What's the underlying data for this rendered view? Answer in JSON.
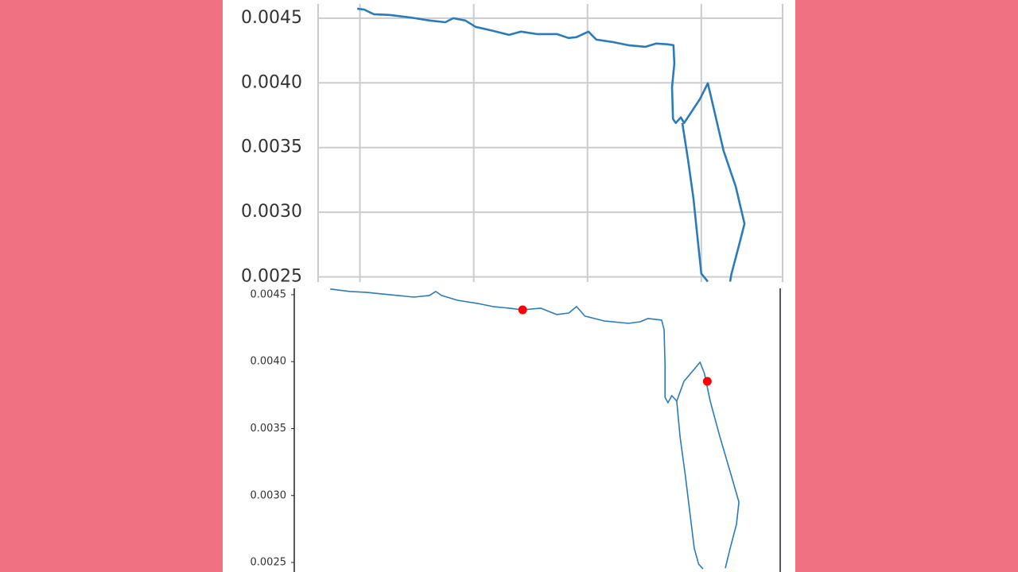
{
  "chart_data": [
    {
      "type": "line",
      "grid": true,
      "spines": "light",
      "ylim": [
        0.00246,
        0.00461
      ],
      "yticks": [
        {
          "value": 0.0025,
          "label": "0.0025"
        },
        {
          "value": 0.003,
          "label": "0.0030"
        },
        {
          "value": 0.0035,
          "label": "0.0035"
        },
        {
          "value": 0.004,
          "label": "0.0040"
        },
        {
          "value": 0.0045,
          "label": "0.0045"
        }
      ],
      "xlim": [
        0,
        100
      ],
      "xticks": [
        9,
        33.5,
        58,
        82.5
      ],
      "series": [
        {
          "color": "#2b7bba",
          "x": [
            8.4,
            9.9,
            12.0,
            15.4,
            19.7,
            24.0,
            27.4,
            29.1,
            31.7,
            33.9,
            37.7,
            41.1,
            43.7,
            47.1,
            51.4,
            53.9,
            55.6,
            58.2,
            59.9,
            63.4,
            66.8,
            70.5,
            72.8,
            75.3,
            76.5,
            76.7,
            76.2,
            76.4,
            77.0,
            78.1,
            78.8,
            82.2,
            83.9,
            85.3,
            87.3,
            89.9,
            91.8,
            90.8,
            89.0,
            88.7,
            null,
            78.4,
            79.6,
            80.8,
            81.7,
            82.5,
            83.9
          ],
          "values": [
            0.004574,
            0.004567,
            0.004531,
            0.004525,
            0.004506,
            0.004482,
            0.004469,
            0.0045,
            0.004482,
            0.004433,
            0.004402,
            0.004371,
            0.004396,
            0.004377,
            0.004377,
            0.004347,
            0.004353,
            0.004396,
            0.004334,
            0.004316,
            0.004291,
            0.004279,
            0.004304,
            0.004298,
            0.004291,
            0.00415,
            0.003966,
            0.003721,
            0.00369,
            0.003733,
            0.00369,
            0.003874,
            0.003997,
            0.003782,
            0.003475,
            0.0032,
            0.002911,
            0.00277,
            0.002525,
            0.002463,
            null,
            0.00369,
            0.003414,
            0.003107,
            0.0028,
            0.002525,
            0.002463
          ]
        }
      ]
    },
    {
      "type": "line",
      "grid": false,
      "spines": "dark",
      "ylim": [
        0.002429,
        0.004547
      ],
      "yticks": [
        {
          "value": 0.0025,
          "label": "0.0025"
        },
        {
          "value": 0.003,
          "label": "0.0030"
        },
        {
          "value": 0.0035,
          "label": "0.0035"
        },
        {
          "value": 0.004,
          "label": "0.0040"
        },
        {
          "value": 0.0045,
          "label": "0.0045"
        }
      ],
      "xlim": [
        0,
        100
      ],
      "series": [
        {
          "color": "#2b7bba",
          "x": [
            7.4,
            11.5,
            14.7,
            19.6,
            24.6,
            27.8,
            29.1,
            30.3,
            33.6,
            37.7,
            40.9,
            44.2,
            47.0,
            50.7,
            54.0,
            56.5,
            58.1,
            59.8,
            63.8,
            68.8,
            71.2,
            72.8,
            75.6,
            76.1,
            76.3,
            76.3,
            76.9,
            77.7,
            78.7,
            80.2,
            82.7,
            83.5,
            84.4,
            85.6,
            87.6,
            90.0,
            91.5,
            91.0,
            89.7,
            88.7,
            null,
            78.7,
            79.4,
            80.5,
            81.5,
            82.3,
            83.2,
            84.1
          ],
          "values": [
            0.004542,
            0.004524,
            0.004518,
            0.0045,
            0.004482,
            0.004494,
            0.004524,
            0.004494,
            0.004458,
            0.004435,
            0.004411,
            0.004399,
            0.004387,
            0.004399,
            0.004352,
            0.004363,
            0.004411,
            0.00434,
            0.004304,
            0.004286,
            0.004298,
            0.004322,
            0.00431,
            0.004239,
            0.003972,
            0.003734,
            0.003693,
            0.003746,
            0.003705,
            0.003853,
            0.00396,
            0.003996,
            0.003912,
            0.003705,
            0.003438,
            0.003141,
            0.002951,
            0.002785,
            0.002607,
            0.002458,
            null,
            0.003705,
            0.003438,
            0.003141,
            0.002844,
            0.002607,
            0.002488,
            0.002452
          ]
        },
        {
          "color": "#ff0000",
          "style": "markers",
          "x": [
            47.0,
            85.0
          ],
          "values": [
            0.004387,
            0.003853
          ]
        }
      ]
    }
  ]
}
